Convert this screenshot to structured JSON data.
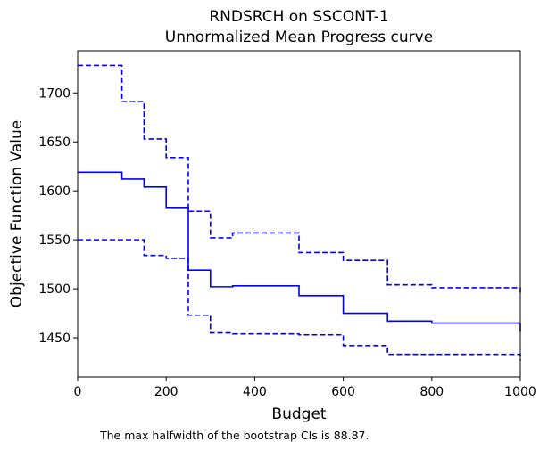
{
  "chart_data": {
    "type": "line",
    "title": "RNDSRCH on SSCONT-1",
    "subtitle": "Unnormalized Mean Progress curve",
    "xlabel": "Budget",
    "ylabel": "Objective Function Value",
    "xlim": [
      0,
      1000
    ],
    "ylim": [
      1410,
      1743
    ],
    "xticks": [
      0,
      200,
      400,
      600,
      800,
      1000
    ],
    "yticks": [
      1450,
      1500,
      1550,
      1600,
      1650,
      1700
    ],
    "grid": false,
    "series": [
      {
        "role": "mean",
        "style": "solid",
        "color": "#0000ff",
        "steps": [
          [
            0,
            1619
          ],
          [
            100,
            1612
          ],
          [
            150,
            1604
          ],
          [
            200,
            1583
          ],
          [
            250,
            1519
          ],
          [
            300,
            1502
          ],
          [
            350,
            1503
          ],
          [
            500,
            1493
          ],
          [
            600,
            1475
          ],
          [
            700,
            1467
          ],
          [
            800,
            1465
          ],
          [
            1000,
            1465
          ]
        ],
        "end_value": 1456
      },
      {
        "role": "upper",
        "style": "dashed",
        "color": "#0000ff",
        "steps": [
          [
            0,
            1728
          ],
          [
            100,
            1691
          ],
          [
            150,
            1653
          ],
          [
            200,
            1634
          ],
          [
            250,
            1579
          ],
          [
            300,
            1552
          ],
          [
            350,
            1557
          ],
          [
            500,
            1537
          ],
          [
            600,
            1529
          ],
          [
            700,
            1504
          ],
          [
            800,
            1501
          ],
          [
            1000,
            1501
          ]
        ],
        "end_value": 1495
      },
      {
        "role": "lower",
        "style": "dashed",
        "color": "#0000ff",
        "steps": [
          [
            0,
            1550
          ],
          [
            150,
            1534
          ],
          [
            200,
            1531
          ],
          [
            250,
            1473
          ],
          [
            300,
            1455
          ],
          [
            350,
            1454
          ],
          [
            500,
            1453
          ],
          [
            600,
            1442
          ],
          [
            700,
            1433
          ],
          [
            800,
            1433
          ],
          [
            1000,
            1433
          ]
        ],
        "end_value": 1427
      }
    ],
    "annotation": "The max halfwidth of the bootstrap CIs is 88.87."
  }
}
